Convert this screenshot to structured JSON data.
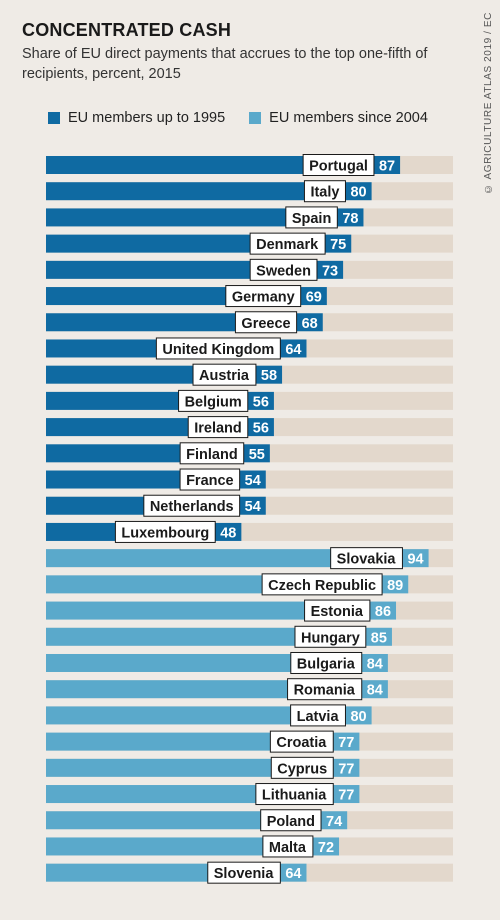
{
  "header": {
    "title": "CONCENTRATED CASH",
    "subtitle": "Share of EU direct payments that accrues to the top one-fifth of recipients, percent, 2015",
    "credit": "© AGRICULTURE ATLAS 2019 / EC"
  },
  "colors": {
    "background": "#efebe6",
    "track": "#e3d8cc",
    "group1": "#0f6aa2",
    "group2": "#5aa9cb"
  },
  "chart_data": {
    "type": "bar",
    "orientation": "horizontal",
    "title": "CONCENTRATED CASH",
    "subtitle": "Share of EU direct payments that accrues to the top one-fifth of recipients, percent, 2015",
    "xlim": [
      0,
      100
    ],
    "grid": false,
    "legend_position": "top-left",
    "series": [
      {
        "name": "EU members up to 1995",
        "color": "#0f6aa2",
        "categories": [
          "Portugal",
          "Italy",
          "Spain",
          "Denmark",
          "Sweden",
          "Germany",
          "Greece",
          "United Kingdom",
          "Austria",
          "Belgium",
          "Ireland",
          "Finland",
          "France",
          "Netherlands",
          "Luxembourg"
        ],
        "values": [
          87,
          80,
          78,
          75,
          73,
          69,
          68,
          64,
          58,
          56,
          56,
          55,
          54,
          54,
          48
        ]
      },
      {
        "name": "EU members since 2004",
        "color": "#5aa9cb",
        "categories": [
          "Slovakia",
          "Czech Republic",
          "Estonia",
          "Hungary",
          "Bulgaria",
          "Romania",
          "Latvia",
          "Croatia",
          "Cyprus",
          "Lithuania",
          "Poland",
          "Malta",
          "Slovenia"
        ],
        "values": [
          94,
          89,
          86,
          85,
          84,
          84,
          80,
          77,
          77,
          77,
          74,
          72,
          64
        ]
      }
    ]
  }
}
